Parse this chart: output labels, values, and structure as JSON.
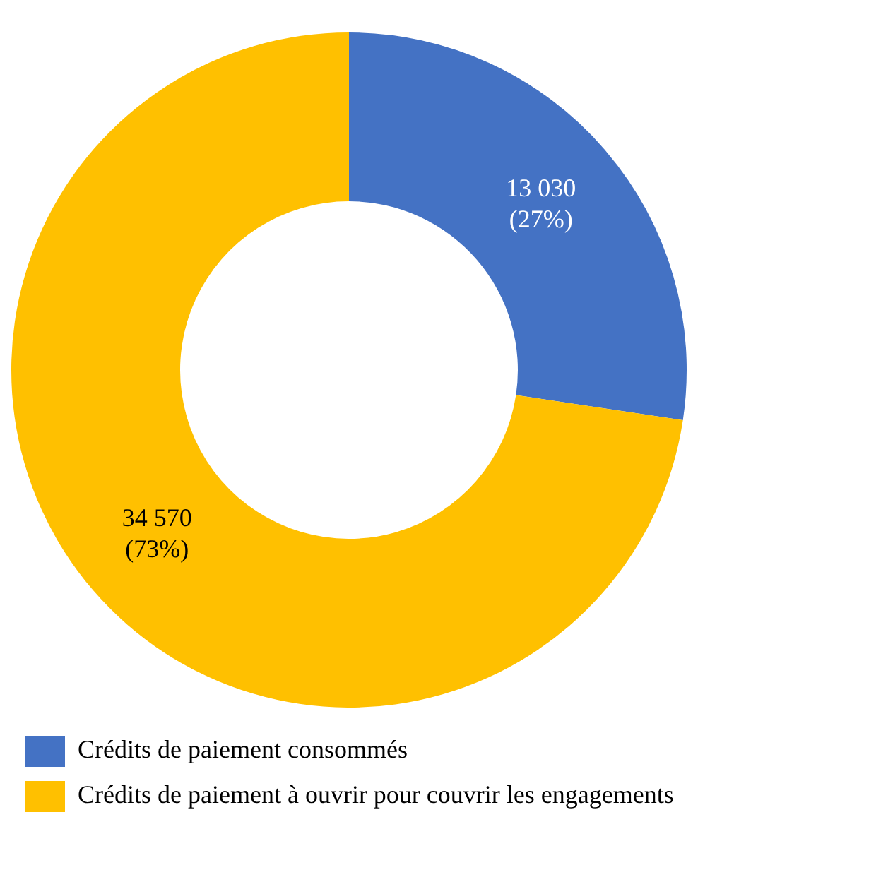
{
  "chart_data": {
    "type": "donut",
    "categories": [
      "Crédits de paiement consommés",
      "Crédits de paiement à ouvrir pour couvrir les engagements"
    ],
    "values": [
      13030,
      34570
    ],
    "colors": [
      "#4472c4",
      "#ffc000"
    ],
    "value_labels": [
      "13 030\n(27%)",
      "34 570\n(73%)"
    ],
    "legend": "bottom left"
  }
}
